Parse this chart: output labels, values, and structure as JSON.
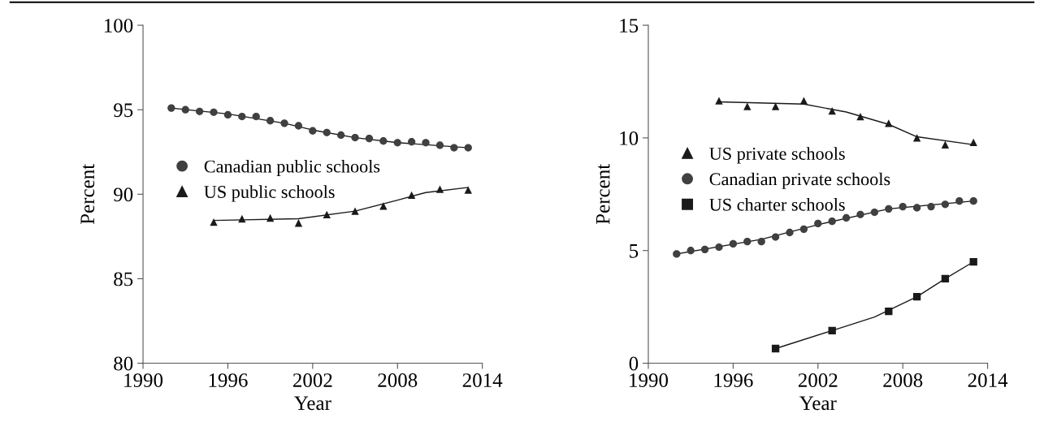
{
  "chart_data": [
    {
      "type": "scatter",
      "xlabel": "Year",
      "ylabel": "Percent",
      "xlim": [
        1990,
        2014
      ],
      "xticks": [
        1990,
        1996,
        2002,
        2008,
        2014
      ],
      "ylim": [
        80,
        100
      ],
      "yticks": [
        80,
        85,
        90,
        95,
        100
      ],
      "legend": "left",
      "grid": false,
      "series": [
        {
          "name": "Canadian public schools",
          "color": "#404040",
          "marker": "circle",
          "x": [
            1992,
            1993,
            1994,
            1995,
            1996,
            1997,
            1998,
            1999,
            2000,
            2001,
            2002,
            2003,
            2004,
            2005,
            2006,
            2007,
            2008,
            2009,
            2010,
            2011,
            2012,
            2013
          ],
          "values": [
            95.1,
            95.0,
            94.9,
            94.85,
            94.7,
            94.6,
            94.6,
            94.35,
            94.2,
            94.05,
            93.75,
            93.65,
            93.5,
            93.35,
            93.3,
            93.15,
            93.05,
            93.1,
            93.05,
            92.9,
            92.75,
            92.75
          ]
        },
        {
          "name": "US public schools",
          "color": "#1a1a1a",
          "marker": "triangle",
          "x": [
            1995,
            1997,
            1999,
            2001,
            2003,
            2005,
            2007,
            2009,
            2011,
            2013
          ],
          "values": [
            88.35,
            88.55,
            88.6,
            88.3,
            88.8,
            89.0,
            89.3,
            89.95,
            90.3,
            90.25
          ]
        },
        {
          "type": "line",
          "color": "#1a1a1a",
          "marker": "none",
          "x": [
            1992,
            1996,
            2000,
            2002,
            2005,
            2008,
            2013
          ],
          "values": [
            95.1,
            94.75,
            94.2,
            93.8,
            93.35,
            93.05,
            92.75
          ]
        },
        {
          "type": "line",
          "color": "#1a1a1a",
          "marker": "none",
          "x": [
            1995,
            2001,
            2005,
            2008,
            2010,
            2013
          ],
          "values": [
            88.45,
            88.55,
            89.0,
            89.65,
            90.1,
            90.4
          ]
        }
      ]
    },
    {
      "type": "scatter",
      "xlabel": "Year",
      "ylabel": "Percent",
      "xlim": [
        1990,
        2014
      ],
      "xticks": [
        1990,
        1996,
        2002,
        2008,
        2014
      ],
      "ylim": [
        0,
        15
      ],
      "yticks": [
        0,
        5,
        10,
        15
      ],
      "legend": "left",
      "grid": false,
      "series": [
        {
          "name": "US private schools",
          "color": "#1a1a1a",
          "marker": "triangle",
          "x": [
            1995,
            1997,
            1999,
            2001,
            2003,
            2005,
            2007,
            2009,
            2011,
            2013
          ],
          "values": [
            11.65,
            11.4,
            11.4,
            11.65,
            11.2,
            10.95,
            10.65,
            10.0,
            9.7,
            9.8
          ]
        },
        {
          "name": "Canadian private schools",
          "color": "#404040",
          "marker": "circle",
          "x": [
            1992,
            1993,
            1994,
            1995,
            1996,
            1997,
            1998,
            1999,
            2000,
            2001,
            2002,
            2003,
            2004,
            2005,
            2006,
            2007,
            2008,
            2009,
            2010,
            2011,
            2012,
            2013
          ],
          "values": [
            4.85,
            5.0,
            5.05,
            5.15,
            5.3,
            5.4,
            5.4,
            5.6,
            5.8,
            5.95,
            6.2,
            6.3,
            6.45,
            6.6,
            6.7,
            6.85,
            6.95,
            6.9,
            6.95,
            7.05,
            7.2,
            7.2
          ]
        },
        {
          "name": "US charter schools",
          "color": "#1a1a1a",
          "marker": "square",
          "x": [
            1999,
            2003,
            2007,
            2009,
            2011,
            2013
          ],
          "values": [
            0.65,
            1.45,
            2.3,
            2.95,
            3.75,
            4.5
          ]
        },
        {
          "type": "line",
          "color": "#1a1a1a",
          "marker": "none",
          "x": [
            1995,
            2001,
            2004,
            2007,
            2009,
            2013
          ],
          "values": [
            11.6,
            11.5,
            11.15,
            10.6,
            10.05,
            9.7
          ]
        },
        {
          "type": "line",
          "color": "#1a1a1a",
          "marker": "none",
          "x": [
            1992,
            1998,
            2002,
            2007,
            2013
          ],
          "values": [
            4.85,
            5.5,
            6.15,
            6.85,
            7.2
          ]
        },
        {
          "type": "line",
          "color": "#1a1a1a",
          "marker": "none",
          "x": [
            1999,
            2003,
            2006,
            2009,
            2011,
            2013
          ],
          "values": [
            0.65,
            1.45,
            2.05,
            2.95,
            3.75,
            4.5
          ]
        }
      ]
    }
  ]
}
